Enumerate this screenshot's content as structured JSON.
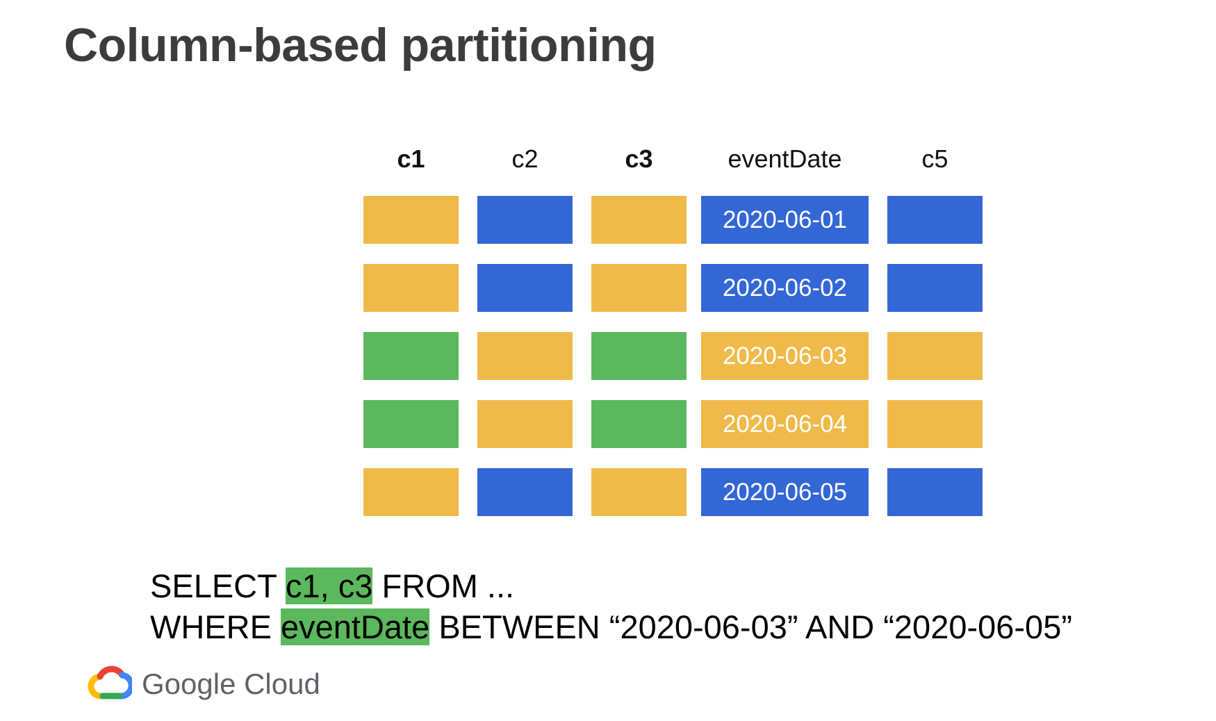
{
  "title": "Column-based partitioning",
  "colors": {
    "yellow": "#efba4a",
    "blue": "#3367d6",
    "green": "#5cb85c",
    "highlight": "#5cb85c",
    "title": "#3c3c3c"
  },
  "diagram": {
    "columns": [
      {
        "label": "c1",
        "bold": true
      },
      {
        "label": "c2",
        "bold": false
      },
      {
        "label": "c3",
        "bold": true
      },
      {
        "label": "eventDate",
        "bold": false
      },
      {
        "label": "c5",
        "bold": false
      }
    ],
    "rows": [
      {
        "date": "2020-06-01",
        "colors": [
          "yellow",
          "blue",
          "yellow",
          "blue",
          "blue"
        ]
      },
      {
        "date": "2020-06-02",
        "colors": [
          "yellow",
          "blue",
          "yellow",
          "blue",
          "blue"
        ]
      },
      {
        "date": "2020-06-03",
        "colors": [
          "green",
          "yellow",
          "green",
          "yellow",
          "yellow"
        ]
      },
      {
        "date": "2020-06-04",
        "colors": [
          "green",
          "yellow",
          "green",
          "yellow",
          "yellow"
        ]
      },
      {
        "date": "2020-06-05",
        "colors": [
          "yellow",
          "blue",
          "yellow",
          "blue",
          "blue"
        ]
      }
    ]
  },
  "query": {
    "line1_prefix": "SELECT ",
    "line1_highlight": "c1, c3",
    "line1_suffix": " FROM ...",
    "line2_prefix": "WHERE ",
    "line2_highlight": "eventDate",
    "line2_suffix": " BETWEEN “2020-06-03” AND “2020-06-05”"
  },
  "logo": {
    "icon": "google-cloud-icon",
    "text": "Google Cloud"
  }
}
